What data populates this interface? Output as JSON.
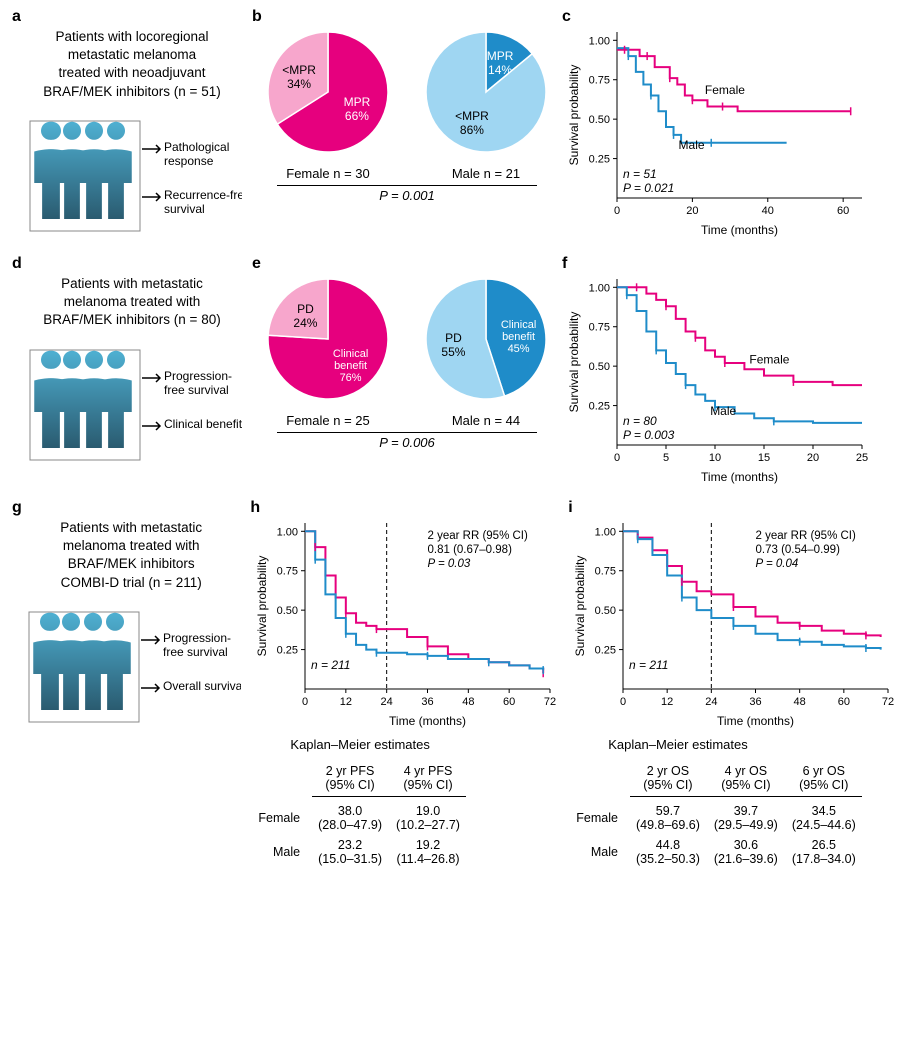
{
  "colors": {
    "female_dark": "#e6007e",
    "female_light": "#f7a6cc",
    "male_dark": "#1f8cc9",
    "male_light": "#9fd6f2",
    "axis": "#000000",
    "box": "#888888",
    "people_top": "#4fb0d2",
    "people_bot": "#2a5b70"
  },
  "panelA": {
    "label": "a",
    "title_lines": [
      "Patients with locoregional",
      "metastatic melanoma",
      "treated with neoadjuvant",
      "BRAF/MEK inhibitors (n = 51)"
    ],
    "arrows": [
      "Pathological",
      "response",
      "Recurrence-free",
      "survival"
    ]
  },
  "panelB": {
    "label": "b",
    "female": {
      "slices": [
        {
          "label": "MPR",
          "pct": 66,
          "color": "#e6007e"
        },
        {
          "label": "<MPR",
          "pct": 34,
          "color": "#f7a6cc"
        }
      ],
      "caption": "Female n = 30"
    },
    "male": {
      "slices": [
        {
          "label": "MPR",
          "pct": 14,
          "color": "#1f8cc9"
        },
        {
          "label": "<MPR",
          "pct": 86,
          "color": "#9fd6f2"
        }
      ],
      "caption": "Male n = 21"
    },
    "pval": "P = 0.001"
  },
  "panelC": {
    "label": "c",
    "ylabel": "Survival probability",
    "xlabel": "Time (months)",
    "yticks": [
      0.25,
      0.5,
      0.75,
      1.0
    ],
    "xticks": [
      0,
      20,
      40,
      60
    ],
    "xmax": 65,
    "n": "n = 51",
    "p": "P = 0.021",
    "female_label": "Female",
    "male_label": "Male",
    "female_pts": [
      [
        0,
        0.94
      ],
      [
        2,
        0.94
      ],
      [
        4,
        0.94
      ],
      [
        6,
        0.9
      ],
      [
        8,
        0.9
      ],
      [
        10,
        0.83
      ],
      [
        12,
        0.83
      ],
      [
        14,
        0.76
      ],
      [
        16,
        0.72
      ],
      [
        18,
        0.65
      ],
      [
        20,
        0.62
      ],
      [
        22,
        0.62
      ],
      [
        24,
        0.58
      ],
      [
        28,
        0.58
      ],
      [
        32,
        0.55
      ],
      [
        45,
        0.55
      ],
      [
        62,
        0.55
      ]
    ],
    "male_pts": [
      [
        0,
        0.95
      ],
      [
        3,
        0.9
      ],
      [
        5,
        0.8
      ],
      [
        7,
        0.72
      ],
      [
        9,
        0.65
      ],
      [
        11,
        0.55
      ],
      [
        13,
        0.45
      ],
      [
        15,
        0.4
      ],
      [
        17,
        0.35
      ],
      [
        19,
        0.35
      ],
      [
        25,
        0.35
      ],
      [
        35,
        0.35
      ],
      [
        45,
        0.35
      ]
    ]
  },
  "panelD": {
    "label": "d",
    "title_lines": [
      "Patients with metastatic",
      "melanoma treated with",
      "BRAF/MEK inhibitors (n = 80)"
    ],
    "arrows": [
      "Progression-",
      "free survival",
      "Clinical benefit"
    ]
  },
  "panelE": {
    "label": "e",
    "female": {
      "slices": [
        {
          "label": "Clinical benefit",
          "pct": 76,
          "color": "#e6007e",
          "small": true
        },
        {
          "label": "PD",
          "pct": 24,
          "color": "#f7a6cc"
        }
      ],
      "caption": "Female n = 25"
    },
    "male": {
      "slices": [
        {
          "label": "Clinical benefit",
          "pct": 45,
          "color": "#1f8cc9",
          "small": true
        },
        {
          "label": "PD",
          "pct": 55,
          "color": "#9fd6f2"
        }
      ],
      "caption": "Male n = 44"
    },
    "pval": "P = 0.006"
  },
  "panelF": {
    "label": "f",
    "ylabel": "Survival probability",
    "xlabel": "Time (months)",
    "yticks": [
      0.25,
      0.5,
      0.75,
      1.0
    ],
    "xticks": [
      0,
      5,
      10,
      15,
      20,
      25
    ],
    "xmax": 25,
    "n": "n = 80",
    "p": "P = 0.003",
    "female_label": "Female",
    "male_label": "Male",
    "female_pts": [
      [
        0,
        1.0
      ],
      [
        2,
        1.0
      ],
      [
        3,
        0.96
      ],
      [
        4,
        0.92
      ],
      [
        5,
        0.88
      ],
      [
        6,
        0.8
      ],
      [
        7,
        0.72
      ],
      [
        8,
        0.68
      ],
      [
        9,
        0.6
      ],
      [
        10,
        0.56
      ],
      [
        11,
        0.52
      ],
      [
        13,
        0.48
      ],
      [
        15,
        0.44
      ],
      [
        18,
        0.4
      ],
      [
        22,
        0.38
      ],
      [
        25,
        0.38
      ]
    ],
    "male_pts": [
      [
        0,
        1.0
      ],
      [
        1,
        0.95
      ],
      [
        2,
        0.85
      ],
      [
        3,
        0.72
      ],
      [
        4,
        0.6
      ],
      [
        5,
        0.52
      ],
      [
        6,
        0.45
      ],
      [
        7,
        0.38
      ],
      [
        8,
        0.32
      ],
      [
        9,
        0.28
      ],
      [
        10,
        0.24
      ],
      [
        12,
        0.2
      ],
      [
        14,
        0.17
      ],
      [
        16,
        0.15
      ],
      [
        20,
        0.14
      ],
      [
        25,
        0.14
      ]
    ]
  },
  "panelG": {
    "label": "g",
    "title_lines": [
      "Patients with metastatic",
      "melanoma treated with",
      "BRAF/MEK inhibitors",
      "COMBI-D trial (n = 211)"
    ],
    "arrows": [
      "Progression-",
      "free survival",
      "Overall survival"
    ]
  },
  "panelH": {
    "label": "h",
    "ylabel": "Survival probability",
    "xlabel": "Time (months)",
    "yticks": [
      0.25,
      0.5,
      0.75,
      1.0
    ],
    "xticks": [
      0,
      12,
      24,
      36,
      48,
      60,
      72
    ],
    "xmax": 72,
    "vline_x": 24,
    "n": "n = 211",
    "rr_lines": [
      "2 year RR (95% CI)",
      "0.81 (0.67–0.98)",
      "P = 0.03"
    ],
    "female_pts": [
      [
        0,
        1.0
      ],
      [
        3,
        0.9
      ],
      [
        6,
        0.72
      ],
      [
        9,
        0.58
      ],
      [
        12,
        0.48
      ],
      [
        15,
        0.42
      ],
      [
        18,
        0.4
      ],
      [
        21,
        0.38
      ],
      [
        24,
        0.38
      ],
      [
        30,
        0.33
      ],
      [
        36,
        0.27
      ],
      [
        42,
        0.22
      ],
      [
        48,
        0.19
      ],
      [
        54,
        0.17
      ],
      [
        60,
        0.15
      ],
      [
        66,
        0.13
      ],
      [
        70,
        0.1
      ]
    ],
    "male_pts": [
      [
        0,
        1.0
      ],
      [
        3,
        0.82
      ],
      [
        6,
        0.6
      ],
      [
        9,
        0.45
      ],
      [
        12,
        0.35
      ],
      [
        15,
        0.28
      ],
      [
        18,
        0.25
      ],
      [
        21,
        0.23
      ],
      [
        24,
        0.23
      ],
      [
        30,
        0.22
      ],
      [
        36,
        0.21
      ],
      [
        42,
        0.19
      ],
      [
        48,
        0.19
      ],
      [
        54,
        0.17
      ],
      [
        60,
        0.15
      ],
      [
        66,
        0.13
      ],
      [
        70,
        0.12
      ]
    ],
    "est_title": "Kaplan–Meier estimates",
    "table": {
      "headers": [
        "2 yr PFS (95% CI)",
        "4 yr PFS (95% CI)"
      ],
      "rows": [
        {
          "label": "Female",
          "vals": [
            "38.0 (28.0–47.9)",
            "19.0 (10.2–27.7)"
          ]
        },
        {
          "label": "Male",
          "vals": [
            "23.2 (15.0–31.5)",
            "19.2 (11.4–26.8)"
          ]
        }
      ]
    }
  },
  "panelI": {
    "label": "i",
    "ylabel": "Survival probability",
    "xlabel": "Time (months)",
    "yticks": [
      0.25,
      0.5,
      0.75,
      1.0
    ],
    "xticks": [
      0,
      12,
      24,
      36,
      48,
      60,
      72
    ],
    "xmax": 72,
    "vline_x": 24,
    "n": "n = 211",
    "rr_lines": [
      "2 year RR (95% CI)",
      "0.73 (0.54–0.99)",
      "P = 0.04"
    ],
    "female_pts": [
      [
        0,
        1.0
      ],
      [
        4,
        0.96
      ],
      [
        8,
        0.88
      ],
      [
        12,
        0.78
      ],
      [
        16,
        0.68
      ],
      [
        20,
        0.62
      ],
      [
        24,
        0.6
      ],
      [
        30,
        0.52
      ],
      [
        36,
        0.46
      ],
      [
        42,
        0.42
      ],
      [
        48,
        0.4
      ],
      [
        54,
        0.37
      ],
      [
        60,
        0.35
      ],
      [
        66,
        0.34
      ],
      [
        70,
        0.33
      ]
    ],
    "male_pts": [
      [
        0,
        1.0
      ],
      [
        4,
        0.95
      ],
      [
        8,
        0.85
      ],
      [
        12,
        0.72
      ],
      [
        16,
        0.58
      ],
      [
        20,
        0.5
      ],
      [
        24,
        0.45
      ],
      [
        30,
        0.4
      ],
      [
        36,
        0.35
      ],
      [
        42,
        0.31
      ],
      [
        48,
        0.3
      ],
      [
        54,
        0.28
      ],
      [
        60,
        0.27
      ],
      [
        66,
        0.26
      ],
      [
        70,
        0.25
      ]
    ],
    "est_title": "Kaplan–Meier estimates",
    "table": {
      "headers": [
        "2 yr OS (95% CI)",
        "4 yr OS (95% CI)",
        "6 yr OS (95% CI)"
      ],
      "rows": [
        {
          "label": "Female",
          "vals": [
            "59.7 (49.8–69.6)",
            "39.7 (29.5–49.9)",
            "34.5 (24.5–44.6)"
          ]
        },
        {
          "label": "Male",
          "vals": [
            "44.8 (35.2–50.3)",
            "30.6 (21.6–39.6)",
            "26.5 (17.8–34.0)"
          ]
        }
      ]
    }
  }
}
